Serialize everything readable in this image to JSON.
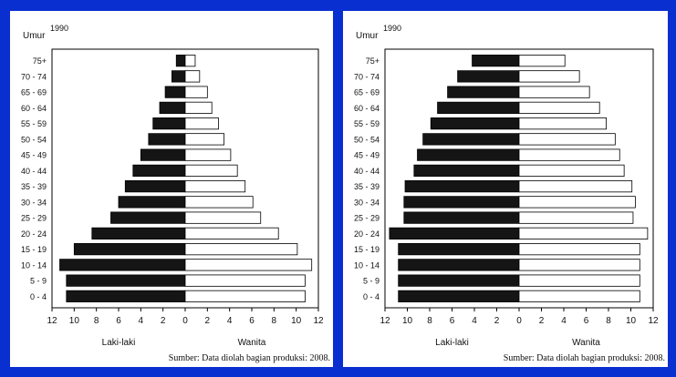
{
  "chart_data": [
    {
      "type": "bar",
      "subtype": "population-pyramid",
      "year_label": "1990",
      "axis_title": "Umur",
      "categories": [
        "75+",
        "70 - 74",
        "65 - 69",
        "60 - 64",
        "55 - 59",
        "50 - 54",
        "45 - 49",
        "40 - 44",
        "35 - 39",
        "30 - 34",
        "25 - 29",
        "20 - 24",
        "15 - 19",
        "10 - 14",
        "5 - 9",
        "0 - 4"
      ],
      "series": [
        {
          "name": "Laki-laki",
          "values": [
            0.8,
            1.2,
            1.8,
            2.3,
            2.9,
            3.3,
            4.0,
            4.7,
            5.4,
            6.0,
            6.7,
            8.4,
            10.0,
            11.3,
            10.7,
            10.7
          ]
        },
        {
          "name": "Wanita",
          "values": [
            0.9,
            1.3,
            2.0,
            2.4,
            3.0,
            3.5,
            4.1,
            4.7,
            5.4,
            6.1,
            6.8,
            8.4,
            10.1,
            11.4,
            10.8,
            10.8
          ]
        }
      ],
      "xticks": [
        "12",
        "10",
        "8",
        "6",
        "4",
        "2",
        "0",
        "2",
        "4",
        "6",
        "8",
        "10",
        "12"
      ],
      "xlim": [
        -12,
        12
      ],
      "xlabel_left": "Laki-laki",
      "xlabel_right": "Wanita",
      "source": "Sumber: Data diolah bagian produksi: 2008."
    },
    {
      "type": "bar",
      "subtype": "population-pyramid",
      "year_label": "1990",
      "axis_title": "Umur",
      "categories": [
        "75+",
        "70 - 74",
        "65 - 69",
        "60 - 64",
        "55 - 59",
        "50 - 54",
        "45 - 49",
        "40 - 44",
        "35 - 39",
        "30 - 34",
        "25 - 29",
        "20 - 24",
        "15 - 19",
        "10 - 14",
        "5 - 9",
        "0 - 4"
      ],
      "series": [
        {
          "name": "Laki-laki",
          "values": [
            4.2,
            5.5,
            6.4,
            7.3,
            7.9,
            8.6,
            9.1,
            9.4,
            10.2,
            10.3,
            10.3,
            11.6,
            10.8,
            10.8,
            10.8,
            10.8
          ]
        },
        {
          "name": "Wanita",
          "values": [
            4.1,
            5.4,
            6.3,
            7.2,
            7.8,
            8.6,
            9.0,
            9.4,
            10.1,
            10.4,
            10.2,
            11.5,
            10.8,
            10.8,
            10.8,
            10.8
          ]
        }
      ],
      "xticks": [
        "12",
        "10",
        "8",
        "6",
        "4",
        "2",
        "0",
        "2",
        "4",
        "6",
        "8",
        "10",
        "12"
      ],
      "xlim": [
        -12,
        12
      ],
      "xlabel_left": "Laki-laki",
      "xlabel_right": "Wanita",
      "source": "Sumber: Data diolah bagian produksi: 2008."
    }
  ]
}
